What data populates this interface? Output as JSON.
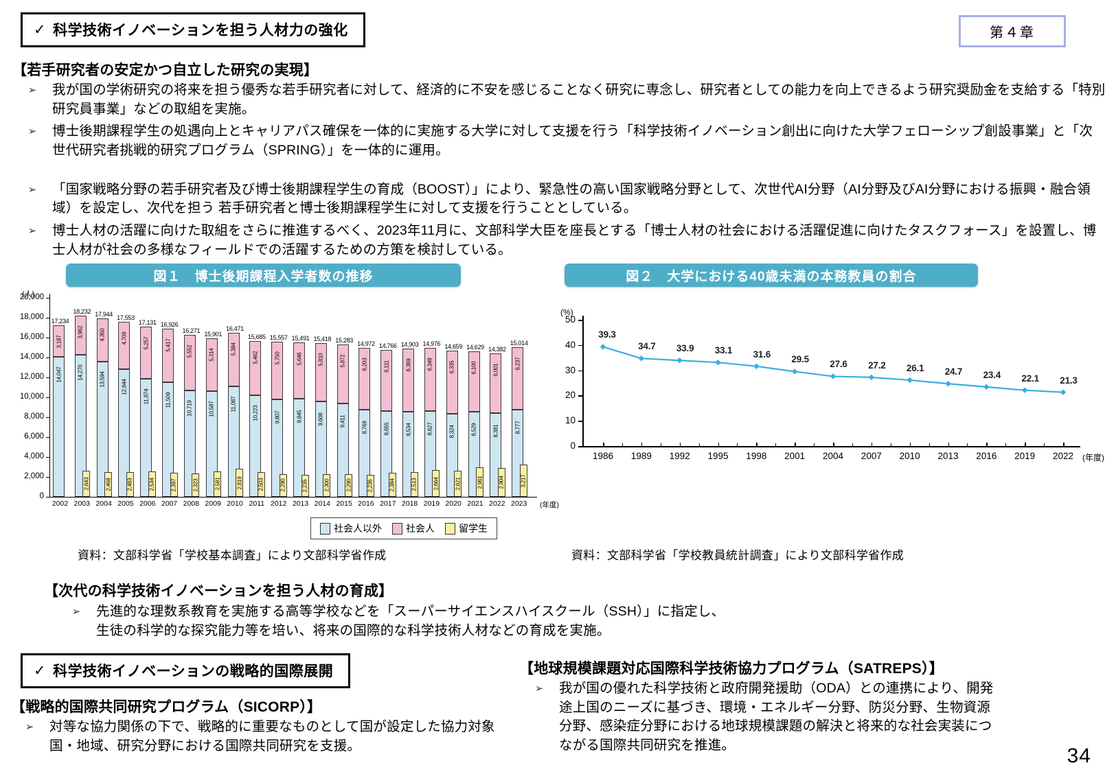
{
  "page": {
    "number": "34"
  },
  "chapter_badge": "第４章",
  "box1": {
    "check": "✓",
    "title": "科学技術イノベーションを担う人材力の強化"
  },
  "sections": {
    "wakate": {
      "heading": "【若手研究者の安定かつ自立した研究の実現】",
      "bullets": [
        {
          "text": "我が国の学術研究の将来を担う優秀な若手研究者に対して、経済的に不安を感じることなく研究に専念し、研究者としての能力を向上できるよう研究奨励金を支給する「特別研究員事業」などの取組を実施。"
        },
        {
          "text": "博士後期課程学生の処遇向上とキャリアパス確保を一体的に実施する大学に対して支援を行う「科学技術イノベーション創出に向けた大学フェローシップ創設事業」と「次世代研究者挑戦的研究プログラム（SPRING）」を一体的に運用。"
        },
        {
          "text": "「国家戦略分野の若手研究者及び博士後期課程学生の育成（BOOST）」により、緊急性の高い国家戦略分野として、次世代AI分野（AI分野及びAI分野における振興・融合領域）を設定し、次代を担う 若手研究者と博士後期課程学生に対して支援を行うこととしている。"
        },
        {
          "text": "博士人材の活躍に向けた取組をさらに推進するべく、2023年11月に、文部科学大臣を座長とする「博士人材の社会における活躍促進に向けたタスクフォース」を設置し、博士人材が社会の多様なフィールドでの活躍するための方策を検討している。"
        }
      ]
    },
    "jidai": {
      "heading": "【次代の科学技術イノベーションを担う人材の育成】",
      "bullets": [
        {
          "text": "先進的な理数系教育を実施する高等学校などを「スーパーサイエンスハイスクール（SSH）」に指定し、生徒の科学的な探究能力等を培い、将来の国際的な科学技術人材などの育成を実施。"
        }
      ]
    },
    "intl": {
      "check": "✓",
      "title": "科学技術イノベーションの戦略的国際展開"
    },
    "sicorp": {
      "heading": "【戦略的国際共同研究プログラム（SICORP）】",
      "bullets": [
        {
          "text": "対等な協力関係の下で、戦略的に重要なものとして国が設定した協力対象国・地域、研究分野における国際共同研究を支援。"
        }
      ]
    },
    "satreps": {
      "heading": "【地球規模課題対応国際科学技術協力プログラム（SATREPS）】",
      "bullets": [
        {
          "text": "我が国の優れた科学技術と政府開発援助（ODA）との連携により、開発途上国のニーズに基づき、環境・エネルギー分野、防災分野、生物資源分野、感染症分野における地球規模課題の解決と将来的な社会実装につながる国際共同研究を推進。"
        }
      ]
    }
  },
  "fig1": {
    "label": "図１",
    "title": "図１　博士後期課程入学者数の推移",
    "source": "資料：文部科学省「学校基本調査」により文部科学省作成"
  },
  "fig2": {
    "label": "図２",
    "title": "図２　大学における40歳未満の本務教員の割合",
    "source": "資料：文部科学省「学校教員統計調査」により文部科学省作成"
  },
  "chart_data": [
    {
      "type": "bar",
      "stacked": true,
      "title": "博士後期課程入学者数の推移",
      "categories": [
        2002,
        2003,
        2004,
        2005,
        2006,
        2007,
        2008,
        2009,
        2010,
        2011,
        2012,
        2013,
        2014,
        2015,
        2016,
        2017,
        2018,
        2019,
        2020,
        2021,
        2022,
        2023
      ],
      "series": [
        {
          "name": "社会人以外",
          "color": "#cee5f2",
          "values": [
            14047,
            14270,
            13594,
            12844,
            11874,
            11509,
            10719,
            10587,
            11087,
            10223,
            9807,
            9845,
            9608,
            9411,
            8769,
            8655,
            8534,
            8627,
            8324,
            8529,
            8381,
            8777
          ]
        },
        {
          "name": "社会人",
          "color": "#f4bed2",
          "values": [
            3187,
            3962,
            4350,
            4709,
            5257,
            5417,
            5552,
            5314,
            5384,
            5462,
            5750,
            5646,
            5810,
            5872,
            6203,
            6111,
            6369,
            6349,
            6335,
            6100,
            6001,
            6237
          ]
        },
        {
          "name": "留学生",
          "color": "#faf0a2",
          "overlay": true,
          "values": [
            null,
            2643,
            2468,
            2483,
            2534,
            2397,
            2323,
            2581,
            2819,
            2503,
            2290,
            2235,
            2300,
            2290,
            2236,
            2384,
            2513,
            2664,
            2621,
            2961,
            2904,
            3217
          ]
        }
      ],
      "totals": [
        17234,
        18232,
        17944,
        17553,
        17131,
        16926,
        16271,
        15901,
        16471,
        15685,
        15557,
        15491,
        15418,
        15283,
        14972,
        14766,
        14903,
        14976,
        14659,
        14629,
        14382,
        15014
      ],
      "ylabel": "(人)",
      "xlabel": "(年度)",
      "ylim": [
        0,
        20000
      ],
      "ytick": 2000,
      "grid": false,
      "legend_position": "bottom"
    },
    {
      "type": "line",
      "title": "大学における40歳未満の本務教員の割合",
      "x": [
        1986,
        1989,
        1992,
        1995,
        1998,
        2001,
        2004,
        2007,
        2010,
        2013,
        2016,
        2019,
        2022
      ],
      "values": [
        39.3,
        34.7,
        33.9,
        33.1,
        31.6,
        29.5,
        27.6,
        27.2,
        26.1,
        24.7,
        23.4,
        22.1,
        21.3
      ],
      "ylabel": "(%)",
      "xlabel": "(年度)",
      "ylim": [
        0,
        50
      ],
      "ytick": 10,
      "line_color": "#3aaee0",
      "grid": false
    }
  ]
}
